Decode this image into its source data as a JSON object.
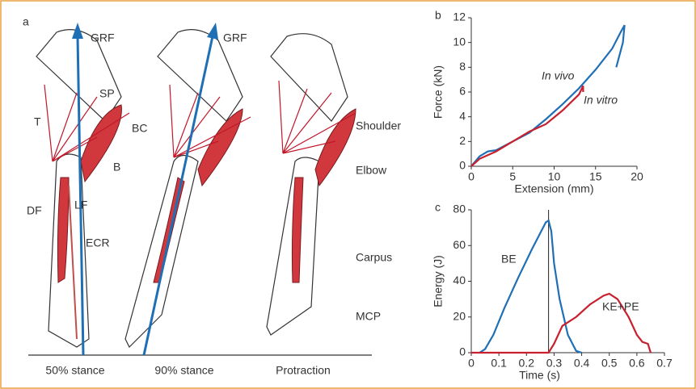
{
  "panel_a": {
    "letter": "a",
    "labels": [
      "GRF",
      "GRF",
      "SP",
      "T",
      "BC",
      "B",
      "DF",
      "LF",
      "ECR",
      "Shoulder",
      "Elbow",
      "Carpus",
      "MCP"
    ],
    "captions": [
      "50% stance",
      "90% stance",
      "Protraction"
    ]
  },
  "chart_data": [
    {
      "type": "line",
      "panel": "b",
      "x_label": "Extension (mm)",
      "y_label": "Force (kN)",
      "xlim": [
        0,
        20
      ],
      "xticks": [
        0,
        5,
        10,
        15,
        20
      ],
      "ylim": [
        0,
        12
      ],
      "yticks": [
        0,
        2,
        4,
        6,
        8,
        10,
        12
      ],
      "series": [
        {
          "name": "In vivo",
          "color": "#1f6fb5",
          "x": [
            0,
            1,
            2,
            3,
            5,
            7,
            9,
            11,
            13,
            15,
            17,
            18,
            18.5,
            18.3,
            17.5
          ],
          "values": [
            0,
            0.8,
            1.2,
            1.3,
            2,
            2.7,
            3.8,
            5,
            6.3,
            7.8,
            9.5,
            10.8,
            11.4,
            10,
            8
          ]
        },
        {
          "name": "In vitro",
          "color": "#c8202e",
          "x": [
            0,
            1,
            3,
            5,
            7,
            9,
            11,
            13,
            13.5,
            13.5
          ],
          "values": [
            0,
            0.6,
            1.2,
            2,
            2.8,
            3.4,
            4.5,
            5.8,
            6.5,
            6
          ]
        }
      ]
    },
    {
      "type": "line",
      "panel": "c",
      "x_label": "Time (s)",
      "y_label": "Energy (J)",
      "xlim": [
        0,
        0.7
      ],
      "xticks": [
        0,
        0.1,
        0.2,
        0.3,
        0.4,
        0.5,
        0.6,
        0.7
      ],
      "ylim": [
        0,
        80
      ],
      "yticks": [
        0,
        20,
        40,
        60,
        80
      ],
      "vline": 0.28,
      "series": [
        {
          "name": "BE",
          "color": "#1f6fb5",
          "x": [
            0.03,
            0.05,
            0.08,
            0.12,
            0.17,
            0.22,
            0.27,
            0.28,
            0.29,
            0.3,
            0.32,
            0.35,
            0.38,
            0.4
          ],
          "values": [
            0,
            2,
            10,
            25,
            42,
            58,
            73,
            74,
            68,
            50,
            30,
            10,
            1,
            0
          ]
        },
        {
          "name": "KE+PE",
          "color": "#c8202e",
          "x": [
            0,
            0.28,
            0.3,
            0.33,
            0.38,
            0.43,
            0.48,
            0.5,
            0.53,
            0.57,
            0.6,
            0.62,
            0.64,
            0.65
          ],
          "values": [
            0,
            0,
            5,
            15,
            20,
            27,
            32,
            33,
            30,
            20,
            10,
            6,
            5,
            0
          ]
        }
      ]
    }
  ]
}
